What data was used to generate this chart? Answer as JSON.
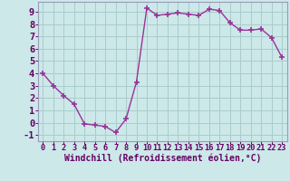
{
  "x": [
    0,
    1,
    2,
    3,
    4,
    5,
    6,
    7,
    8,
    9,
    10,
    11,
    12,
    13,
    14,
    15,
    16,
    17,
    18,
    19,
    20,
    21,
    22,
    23
  ],
  "y": [
    4.0,
    3.0,
    2.2,
    1.5,
    -0.1,
    -0.2,
    -0.3,
    -0.8,
    0.3,
    3.3,
    9.3,
    8.7,
    8.8,
    8.9,
    8.8,
    8.7,
    9.2,
    9.1,
    8.1,
    7.5,
    7.5,
    7.6,
    6.9,
    5.3
  ],
  "xlabel": "Windchill (Refroidissement éolien,°C)",
  "xlim": [
    -0.5,
    23.5
  ],
  "ylim": [
    -1.5,
    9.8
  ],
  "yticks": [
    -1,
    0,
    1,
    2,
    3,
    4,
    5,
    6,
    7,
    8,
    9
  ],
  "xticks": [
    0,
    1,
    2,
    3,
    4,
    5,
    6,
    7,
    8,
    9,
    10,
    11,
    12,
    13,
    14,
    15,
    16,
    17,
    18,
    19,
    20,
    21,
    22,
    23
  ],
  "line_color": "#993399",
  "marker": "+",
  "marker_size": 4.0,
  "marker_lw": 1.2,
  "bg_color": "#cce8e8",
  "grid_color": "#aacccc",
  "border_color": "#9999bb",
  "label_color": "#660066",
  "tick_color": "#660066",
  "xlabel_fontsize": 7.0,
  "ytick_fontsize": 7.5,
  "xtick_fontsize": 6.2,
  "line_width": 1.0
}
